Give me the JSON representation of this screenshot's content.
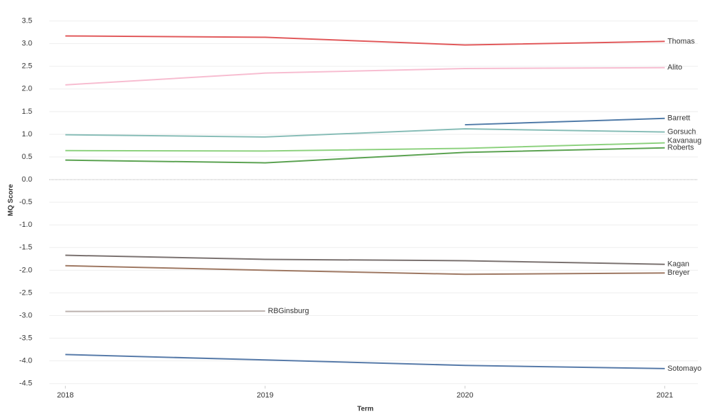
{
  "chart_data": {
    "type": "line",
    "x_label": "Term",
    "y_label": "MQ Score",
    "x": [
      2018,
      2019,
      2020,
      2021
    ],
    "xlim": [
      2017.92,
      2021.08
    ],
    "xticks": [
      2018,
      2019,
      2020,
      2021
    ],
    "ylim": [
      -4.55,
      3.6
    ],
    "yticks": [
      {
        "value": 3.5,
        "label": "3.5"
      },
      {
        "value": 3,
        "label": "3.0"
      },
      2.5,
      {
        "value": 2,
        "label": "2.0"
      },
      1.5,
      {
        "value": 1,
        "label": "1.0"
      },
      0.5,
      {
        "value": 0,
        "label": "0.0"
      },
      -0.5,
      {
        "value": -1,
        "label": "-1.0"
      },
      -1.5,
      {
        "value": -2,
        "label": "-2.0"
      },
      -2.5,
      {
        "value": -3,
        "label": "-3.0"
      },
      -3.5,
      {
        "value": -4,
        "label": "-4.0"
      },
      -4.5
    ],
    "grid": true,
    "series": [
      {
        "name": "Thomas",
        "color": "#e15759",
        "values": [
          3.17,
          3.14,
          2.97,
          3.05
        ]
      },
      {
        "name": "Alito",
        "color": "#f7bcd0",
        "values": [
          2.09,
          2.35,
          2.45,
          2.47
        ]
      },
      {
        "name": "Barrett",
        "color": "#4e79a7",
        "values": [
          null,
          null,
          1.21,
          1.35
        ]
      },
      {
        "name": "Gorsuch",
        "color": "#86bcb6",
        "values": [
          0.99,
          0.94,
          1.12,
          1.05
        ]
      },
      {
        "name": "Kavanaugh",
        "color": "#8cd17d",
        "values": [
          0.64,
          0.63,
          0.69,
          0.81
        ]
      },
      {
        "name": "Roberts",
        "color": "#59a14f",
        "values": [
          0.43,
          0.37,
          0.6,
          0.7
        ]
      },
      {
        "name": "Kagan",
        "color": "#79706e",
        "values": [
          -1.67,
          -1.76,
          -1.79,
          -1.87
        ]
      },
      {
        "name": "Breyer",
        "color": "#9d7660",
        "values": [
          -1.9,
          -2.0,
          -2.09,
          -2.06
        ]
      },
      {
        "name": "RBGinsburg",
        "color": "#bab0ac",
        "values": [
          -2.91,
          -2.9,
          null,
          null
        ]
      },
      {
        "name": "Sotomayor",
        "color": "#5579a8",
        "values": [
          -3.86,
          -3.98,
          -4.1,
          -4.17
        ]
      }
    ]
  }
}
